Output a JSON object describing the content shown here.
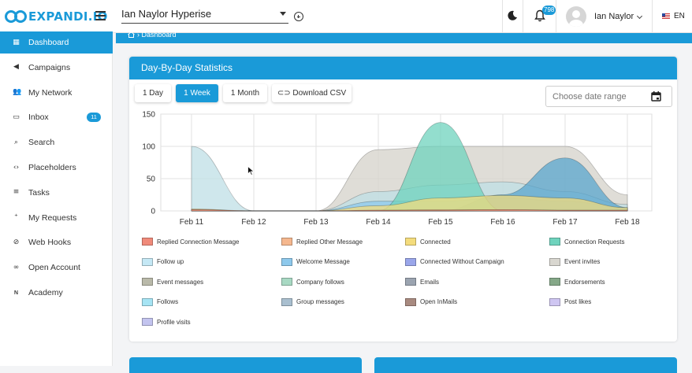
{
  "header": {
    "logo_text": "EXPANDI.IO",
    "account_select": "Ian Naylor Hyperise",
    "notification_count": "798",
    "user_name": "Ian Naylor",
    "language": "EN"
  },
  "sidebar": {
    "items": [
      {
        "label": "Dashboard",
        "icon": "dashboard-icon",
        "glyph": "▦"
      },
      {
        "label": "Campaigns",
        "icon": "megaphone-icon",
        "glyph": "◀"
      },
      {
        "label": "My Network",
        "icon": "people-icon",
        "glyph": "👥"
      },
      {
        "label": "Inbox",
        "icon": "inbox-icon",
        "glyph": "▭",
        "badge": "11"
      },
      {
        "label": "Search",
        "icon": "search-icon",
        "glyph": "⌕"
      },
      {
        "label": "Placeholders",
        "icon": "code-icon",
        "glyph": "‹›"
      },
      {
        "label": "Tasks",
        "icon": "list-icon",
        "glyph": "≡"
      },
      {
        "label": "My Requests",
        "icon": "add-person-icon",
        "glyph": "⁺"
      },
      {
        "label": "Web Hooks",
        "icon": "webhook-icon",
        "glyph": "⊘"
      },
      {
        "label": "Open Account",
        "icon": "link-icon",
        "glyph": "∞"
      },
      {
        "label": "Academy",
        "icon": "new-icon",
        "glyph": "ɴ"
      }
    ]
  },
  "breadcrumb": "Dashboard",
  "stats_card": {
    "title": "Day-By-Day Statistics",
    "buttons": [
      "1 Day",
      "1 Week",
      "1 Month",
      "Download CSV"
    ],
    "date_placeholder": "Choose date range"
  },
  "chart_data": {
    "type": "area",
    "x": [
      "Feb 11",
      "Feb 12",
      "Feb 13",
      "Feb 14",
      "Feb 15",
      "Feb 16",
      "Feb 17",
      "Feb 18"
    ],
    "ylim": [
      0,
      150
    ],
    "yticks": [
      0,
      50,
      100,
      150
    ],
    "grid": true,
    "legend_position": "bottom",
    "series": [
      {
        "name": "Replied Connection Message",
        "color": "#f08a7a",
        "values": [
          2,
          0,
          0,
          1,
          1,
          2,
          1,
          1
        ]
      },
      {
        "name": "Replied Other Message",
        "color": "#f5b78e",
        "values": [
          2,
          0,
          0,
          1,
          2,
          2,
          1,
          1
        ]
      },
      {
        "name": "Connected",
        "color": "#f4dc7c",
        "values": [
          3,
          0,
          0,
          8,
          20,
          24,
          20,
          5
        ]
      },
      {
        "name": "Connection Requests",
        "color": "#6fd3bd",
        "values": [
          0,
          0,
          0,
          0,
          137,
          0,
          0,
          0
        ]
      },
      {
        "name": "Follow up",
        "color": "#c5e8f5",
        "values": [
          100,
          0,
          0,
          30,
          40,
          45,
          30,
          10
        ]
      },
      {
        "name": "Welcome Message",
        "color": "#8ec9ec",
        "values": [
          0,
          0,
          0,
          15,
          15,
          20,
          15,
          5
        ]
      },
      {
        "name": "Connected Without Campaign",
        "color": "#9aa6ea",
        "values": [
          0,
          0,
          0,
          0,
          0,
          0,
          0,
          0
        ]
      },
      {
        "name": "Event invites",
        "color": "#d9d7d0",
        "values": [
          0,
          0,
          0,
          95,
          100,
          100,
          100,
          25
        ]
      },
      {
        "name": "Event messages",
        "color": "#b9b9a9",
        "values": [
          0,
          0,
          0,
          0,
          0,
          0,
          0,
          0
        ]
      },
      {
        "name": "Company follows",
        "color": "#a8d9c3",
        "values": [
          0,
          0,
          0,
          0,
          0,
          0,
          0,
          0
        ]
      },
      {
        "name": "Emails",
        "color": "#9ba4b0",
        "values": [
          0,
          0,
          0,
          0,
          0,
          0,
          0,
          0
        ]
      },
      {
        "name": "Endorsements",
        "color": "#85a888",
        "values": [
          0,
          0,
          0,
          0,
          0,
          0,
          0,
          0
        ]
      },
      {
        "name": "Follows",
        "color": "#a6e4f4",
        "values": [
          0,
          0,
          0,
          0,
          0,
          0,
          0,
          0
        ]
      },
      {
        "name": "Group messages",
        "color": "#a9bfcf",
        "values": [
          0,
          0,
          0,
          0,
          0,
          0,
          0,
          0
        ]
      },
      {
        "name": "Open InMails",
        "color": "#a88a80",
        "values": [
          0,
          0,
          0,
          0,
          0,
          0,
          0,
          0
        ]
      },
      {
        "name": "Post likes",
        "color": "#cfc6f2",
        "values": [
          0,
          0,
          0,
          0,
          0,
          0,
          0,
          0
        ]
      },
      {
        "name": "Profile visits",
        "color": "#c3c4ef",
        "values": [
          0,
          0,
          0,
          0,
          0,
          25,
          82,
          5
        ]
      }
    ]
  },
  "colors": {
    "accent": "#1a9ad8",
    "profile_visits_fill": "#5aa6cd",
    "event_invites_fill": "#d4d2ca",
    "follow_up_fill": "#bfdfe6",
    "connection_requests_fill": "#6fd3bd"
  }
}
